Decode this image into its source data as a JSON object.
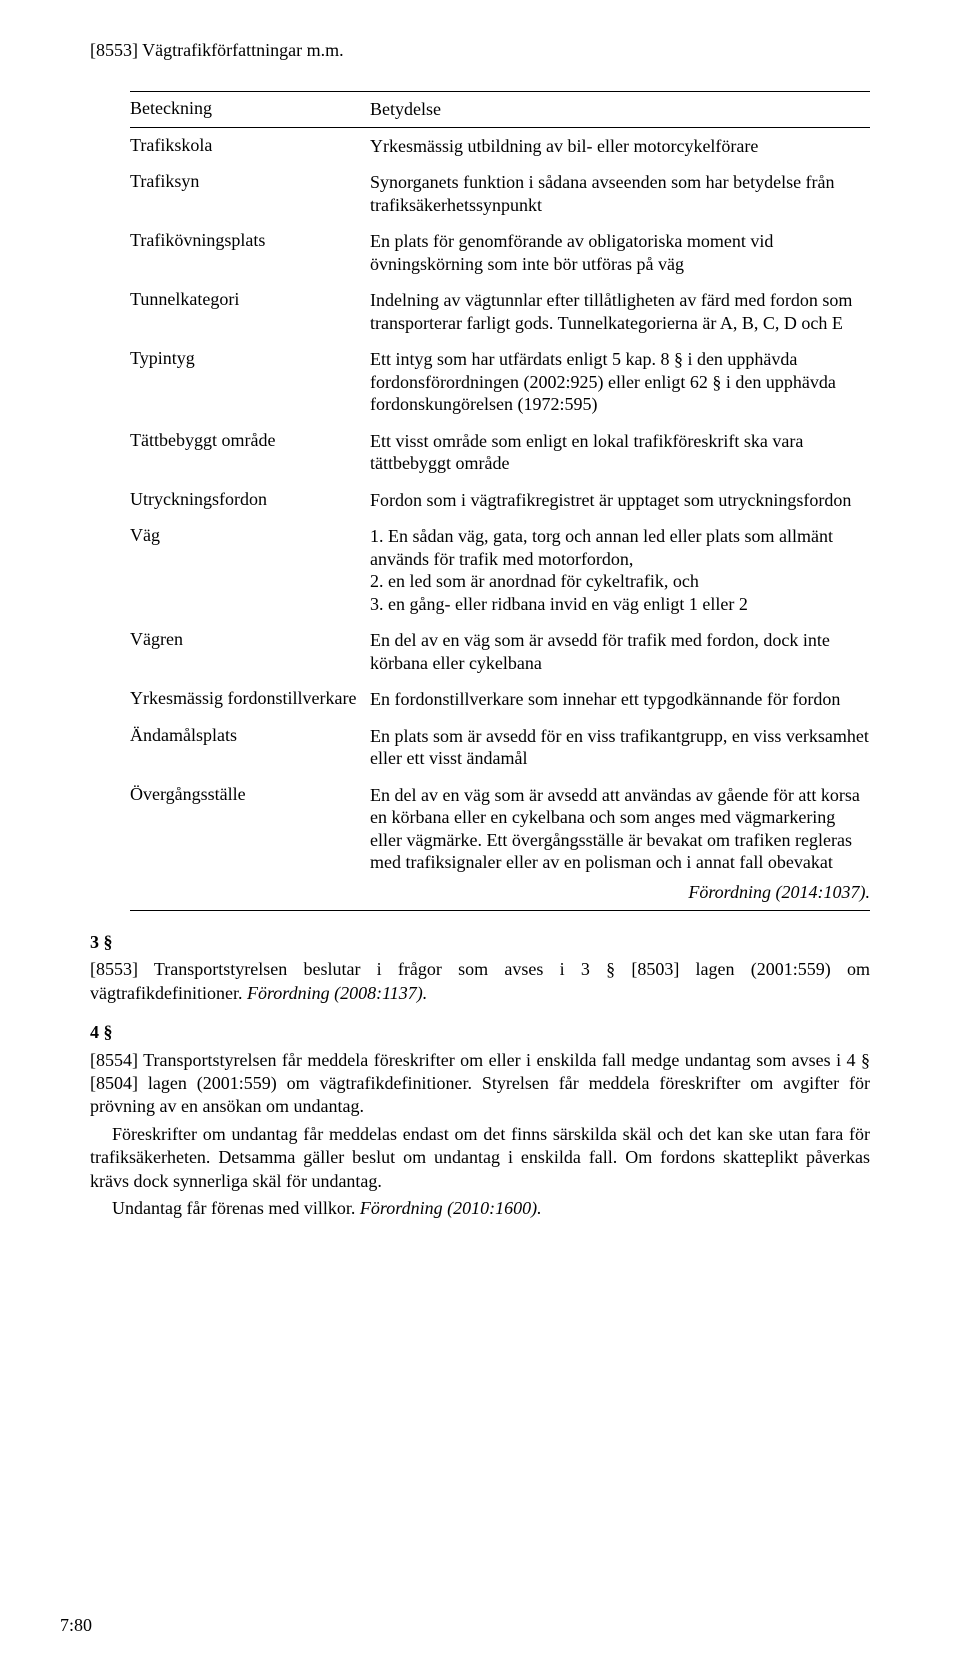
{
  "header": "[8553] Vägtrafikförfattningar m.m.",
  "table": {
    "head_term": "Beteckning",
    "head_def": "Betydelse",
    "rows": [
      {
        "term": "Trafikskola",
        "def": "Yrkesmässig utbildning av bil- eller motorcykelförare"
      },
      {
        "term": "Trafiksyn",
        "def": "Synorganets funktion i sådana avseenden som har betydelse från trafiksäkerhetssynpunkt"
      },
      {
        "term": "Trafikövningsplats",
        "def": "En plats för genomförande av obligatoriska moment vid övningskörning som inte bör utföras på väg"
      },
      {
        "term": "Tunnelkategori",
        "def": "Indelning av vägtunnlar efter tillåtligheten av färd med fordon som transporterar farligt gods. Tunnelkategorierna är A, B, C, D och E"
      },
      {
        "term": "Typintyg",
        "def": "Ett intyg som har utfärdats enligt 5 kap. 8 § i den upphävda fordonsförordningen (2002:925) eller enligt 62 § i den upphävda fordonskungörelsen (1972:595)"
      },
      {
        "term": "Tättbebyggt område",
        "def": "Ett visst område som enligt en lokal trafikföreskrift ska vara tättbebyggt område"
      },
      {
        "term": "Utryckningsfordon",
        "def": "Fordon som i vägtrafikregistret är upptaget som utryckningsfordon"
      },
      {
        "term": "Väg",
        "def": "1. En sådan väg, gata, torg och annan led eller plats som allmänt används för trafik med motorfordon,\n2. en led som är anordnad för cykeltrafik, och\n3. en gång- eller ridbana invid en väg enligt 1 eller 2"
      },
      {
        "term": "Vägren",
        "def": "En del av en väg som är avsedd för trafik med fordon, dock inte körbana eller cykelbana"
      },
      {
        "term": "Yrkesmässig fordonstillverkare",
        "def": "En fordonstillverkare som innehar ett typgodkännande för fordon"
      },
      {
        "term": "Ändamålsplats",
        "def": "En plats som är avsedd för en viss trafikantgrupp, en viss verksamhet eller ett visst ändamål"
      },
      {
        "term": "Övergångsställe",
        "def": "En del av en väg som är avsedd att användas av gående för att korsa en körbana eller en cykelbana och som anges med vägmarkering eller vägmärke. Ett övergångsställe är bevakat om trafiken regleras med trafiksignaler eller av en polisman och i annat fall obevakat"
      }
    ],
    "tail_citation": "Förordning (2014:1037)."
  },
  "section3": {
    "num": "3 §",
    "text": "[8553] Transportstyrelsen beslutar i frågor som avses i 3 § [8503] lagen (2001:559) om vägtrafikdefinitioner.",
    "citation": "Förordning (2008:1137)."
  },
  "section4": {
    "num": "4 §",
    "p1": "[8554] Transportstyrelsen får meddela föreskrifter om eller i enskilda fall medge undantag som avses i 4 § [8504] lagen (2001:559) om vägtrafikdefinitioner. Styrelsen får meddela föreskrifter om avgifter för prövning av en ansökan om undantag.",
    "p2": "Föreskrifter om undantag får meddelas endast om det finns särskilda skäl och det kan ske utan fara för trafiksäkerheten. Detsamma gäller beslut om undantag i enskilda fall. Om fordons skatteplikt påverkas krävs dock synnerliga skäl för undantag.",
    "p3": "Undantag får förenas med villkor.",
    "citation": "Förordning (2010:1600)."
  },
  "footer": "7:80"
}
